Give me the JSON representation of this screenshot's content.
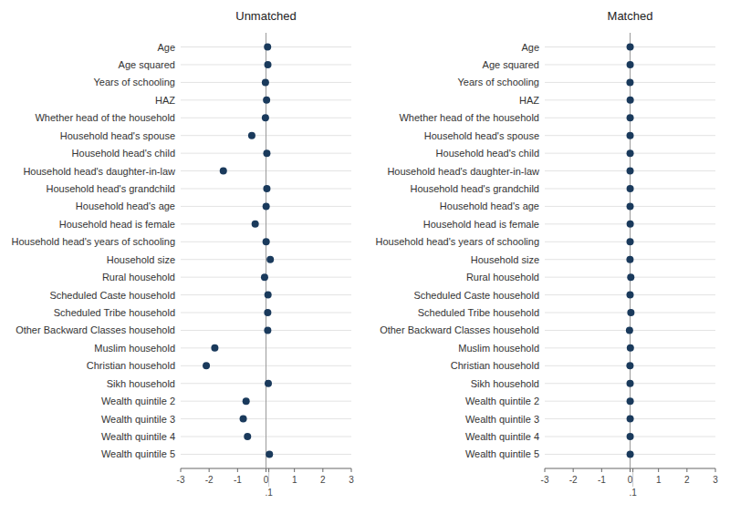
{
  "chart_data": [
    {
      "type": "dot",
      "title": "Unmatched",
      "orientation": "horizontal",
      "grid": true,
      "color": "#1a3a5c",
      "categories": [
        "Age",
        "Age squared",
        "Years of schooling",
        "HAZ",
        "Whether head of the household",
        "Household head's spouse",
        "Household head's child",
        "Household head's daughter-in-law",
        "Household head's grandchild",
        "Household head's age",
        "Household head is female",
        "Household head's years of schooling",
        "Household size",
        "Rural household",
        "Scheduled Caste household",
        "Scheduled Tribe household",
        "Other Backward Classes household",
        "Muslim household",
        "Christian household",
        "Sikh household",
        "Wealth quintile 2",
        "Wealth quintile 3",
        "Wealth quintile 4",
        "Wealth quintile 5"
      ],
      "values": [
        0.055,
        0.065,
        -0.02,
        0.02,
        -0.02,
        -0.5,
        0.03,
        -1.5,
        0.03,
        0.005,
        -0.38,
        0.005,
        0.15,
        -0.05,
        0.07,
        0.06,
        0.06,
        -1.8,
        -2.1,
        0.08,
        -0.7,
        -0.8,
        -0.65,
        0.12
      ],
      "xlim": [
        -3,
        3
      ],
      "xticks": [
        -3,
        -2,
        -1,
        0,
        {
          "value": 0.1,
          "label": ".1"
        },
        1,
        2,
        3
      ]
    },
    {
      "type": "dot",
      "title": "Matched",
      "orientation": "horizontal",
      "grid": true,
      "color": "#1a3a5c",
      "categories": [
        "Age",
        "Age squared",
        "Years of schooling",
        "HAZ",
        "Whether head of the household",
        "Household head's spouse",
        "Household head's child",
        "Household head's daughter-in-law",
        "Household head's grandchild",
        "Household head's age",
        "Household head is female",
        "Household head's years of schooling",
        "Household size",
        "Rural household",
        "Scheduled Caste household",
        "Scheduled Tribe household",
        "Other Backward Classes household",
        "Muslim household",
        "Christian household",
        "Sikh household",
        "Wealth quintile 2",
        "Wealth quintile 3",
        "Wealth quintile 4",
        "Wealth quintile 5"
      ],
      "values": [
        0.002,
        0.003,
        -0.002,
        0.005,
        0.002,
        0.001,
        0.002,
        0.001,
        0.003,
        0.001,
        0.004,
        0.001,
        -0.003,
        0.025,
        0.0,
        0.028,
        -0.02,
        0.01,
        -0.003,
        0.001,
        0.003,
        0.003,
        0.003,
        0.003
      ],
      "xlim": [
        -3,
        3
      ],
      "xticks": [
        -3,
        -2,
        -1,
        0,
        {
          "value": 0.1,
          "label": ".1"
        },
        1,
        2,
        3
      ]
    }
  ]
}
